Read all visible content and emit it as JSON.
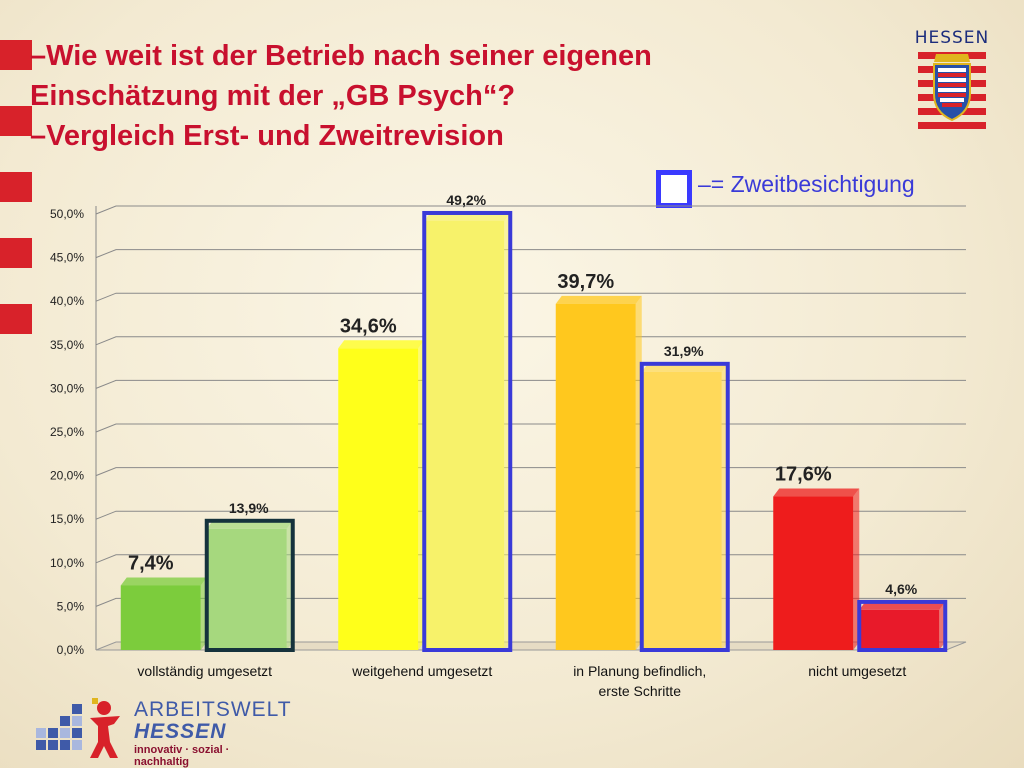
{
  "title_lines": [
    "–Wie weit ist der Betrieb nach seiner eigenen",
    "Einschätzung mit der „GB Psych“?",
    "–Vergleich Erst- und Zweitrevision"
  ],
  "legend": {
    "text": "–= Zweitbesichtigung",
    "box_color": "#3a3aff"
  },
  "logos": {
    "hessen": "HESSEN",
    "arbeitswelt_line1": "ARBEITSWELT",
    "arbeitswelt_line2": "HESSEN",
    "arbeitswelt_line3": "innovativ · sozial · nachhaltig"
  },
  "chart_data": {
    "type": "bar",
    "categories": [
      [
        "vollständig umgesetzt"
      ],
      [
        "weitgehend umgesetzt"
      ],
      [
        "in Planung befindlich,",
        "erste Schritte"
      ],
      [
        "nicht umgesetzt"
      ]
    ],
    "series": [
      {
        "values": [
          7.4,
          34.6,
          39.7,
          17.6
        ],
        "labels": [
          "7,4%",
          "34,6%",
          "39,7%",
          "17,6%"
        ],
        "colors": [
          "#7ccc3c",
          "#ffff1a",
          "#ffc81e",
          "#ee1c1c"
        ]
      },
      {
        "name": "Zweitbesichtigung",
        "values": [
          13.9,
          49.2,
          31.9,
          4.6
        ],
        "labels": [
          "13,9%",
          "49,2%",
          "31,9%",
          "4,6%"
        ],
        "colors": [
          "#a6d87e",
          "#f7f26a",
          "#ffd95a",
          "#e81a2a"
        ],
        "outline_colors": [
          "#15323c",
          "#3a3ad8",
          "#3a3ad8",
          "#3a3ad8"
        ]
      }
    ],
    "yticks": [
      "0,0%",
      "5,0%",
      "10,0%",
      "15,0%",
      "20,0%",
      "25,0%",
      "30,0%",
      "35,0%",
      "40,0%",
      "45,0%",
      "50,0%"
    ],
    "ylim": [
      0,
      50
    ],
    "grid": true
  }
}
